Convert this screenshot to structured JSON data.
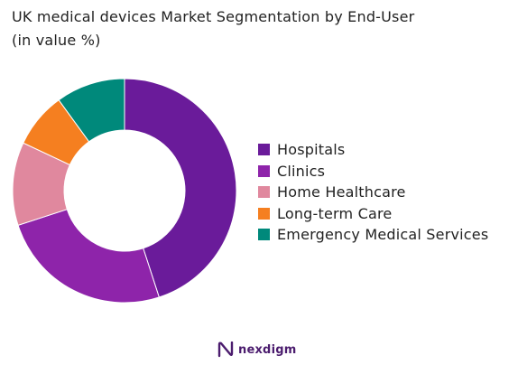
{
  "chart_data": {
    "type": "pie",
    "title": "UK medical devices Market Segmentation by End-User",
    "subtitle": "(in value %)",
    "donut": true,
    "categories": [
      "Hospitals",
      "Clinics",
      "Home Healthcare",
      "Long-term Care",
      "Emergency Medical Services"
    ],
    "values": [
      45,
      25,
      12,
      8,
      10
    ],
    "colors": [
      "#6a1b9a",
      "#8e24aa",
      "#e0889e",
      "#f57f20",
      "#00897b"
    ],
    "legend": "right"
  },
  "brand": {
    "name": "nexdigm",
    "logo_color": "#4b1c6e",
    "icon": "nexdigm-logo-icon"
  }
}
